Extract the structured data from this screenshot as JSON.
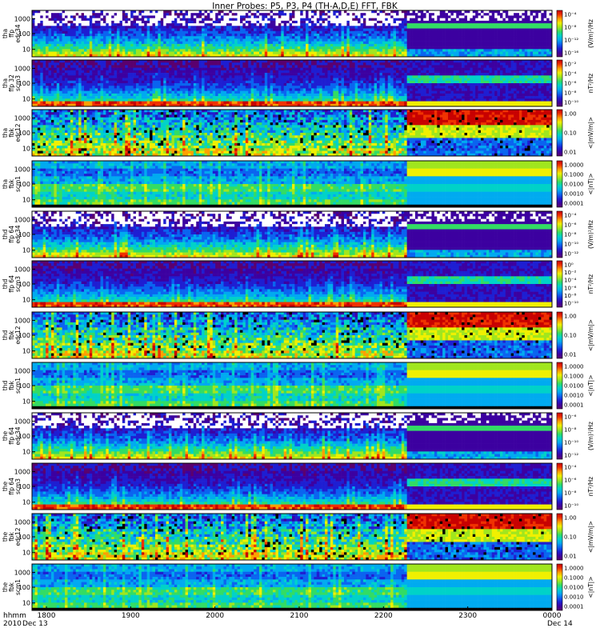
{
  "title": "Inner Probes: P5, P3, P4 (TH-A,D,E) FFT, FBK",
  "time_axis": {
    "row_label_1": "hhmm",
    "row_label_2": "2010",
    "ticks": [
      "1800",
      "1900",
      "2000",
      "2100",
      "2200",
      "2300",
      "0000"
    ],
    "start_date": "Dec 13",
    "end_date": "Dec 14"
  },
  "colors": {
    "colormap": [
      "#5a006e",
      "#3c00a0",
      "#1e1ed2",
      "#0a64f0",
      "#00aaf0",
      "#00d2c8",
      "#32dc64",
      "#a0e61e",
      "#f0f000",
      "#ffa000",
      "#f03200",
      "#c80000"
    ],
    "background": "#ffffff"
  },
  "chart_data": [
    {
      "type": "heatmap",
      "probe": "tha",
      "source": "ffp",
      "channel": "edc34",
      "ylabel": [
        "tha",
        "ffp",
        "edc34"
      ],
      "yticks": [
        "1000",
        "100",
        "10"
      ],
      "colorbar_label": "(V/m)²/Hz",
      "colorbar_ticks": [
        "10⁻⁴",
        "10⁻⁸",
        "10⁻¹²",
        "10⁻¹⁶"
      ]
    },
    {
      "type": "heatmap",
      "probe": "tha",
      "source": "ffp 32",
      "channel": "scm3",
      "ylabel": [
        "tha",
        "ffp 32",
        "scm3"
      ],
      "yticks": [
        "1000",
        "100",
        "10"
      ],
      "colorbar_label": "nT²/Hz",
      "colorbar_ticks": [
        "10⁻²",
        "10⁻⁴",
        "10⁻⁶",
        "10⁻⁸",
        "10⁻¹⁰"
      ]
    },
    {
      "type": "heatmap",
      "probe": "tha",
      "source": "fbk",
      "channel": "edc12",
      "ylabel": [
        "tha",
        "fbk",
        "edc12"
      ],
      "yticks": [
        "1000",
        "100",
        "10"
      ],
      "colorbar_label": "<|mV/m|>",
      "colorbar_ticks": [
        "1.00",
        "0.10",
        "0.01"
      ]
    },
    {
      "type": "heatmap",
      "probe": "tha",
      "source": "fbk",
      "channel": "scm1",
      "ylabel": [
        "tha",
        "fbk",
        "scm1"
      ],
      "yticks": [
        "1000",
        "100",
        "10"
      ],
      "colorbar_label": "<|nT|>",
      "colorbar_ticks": [
        "1.0000",
        "0.1000",
        "0.0100",
        "0.0010",
        "0.0001"
      ]
    },
    {
      "type": "heatmap",
      "probe": "thd",
      "source": "ffp 64",
      "channel": "edc34",
      "ylabel": [
        "thd",
        "ffp 64",
        "edc34"
      ],
      "yticks": [
        "1000",
        "100",
        "10"
      ],
      "colorbar_label": "(V/m)²/Hz",
      "colorbar_ticks": [
        "10⁻⁴",
        "10⁻⁶",
        "10⁻⁸",
        "10⁻¹⁰",
        "10⁻¹²"
      ]
    },
    {
      "type": "heatmap",
      "probe": "thd",
      "source": "ffp 64",
      "channel": "scm3",
      "ylabel": [
        "thd",
        "ffp 64",
        "scm3"
      ],
      "yticks": [
        "1000",
        "100",
        "10"
      ],
      "colorbar_label": "nT²/Hz",
      "colorbar_ticks": [
        "10⁰",
        "10⁻²",
        "10⁻⁴",
        "10⁻⁶",
        "10⁻⁸",
        "10⁻¹⁰"
      ]
    },
    {
      "type": "heatmap",
      "probe": "thd",
      "source": "fbk",
      "channel": "edc12",
      "ylabel": [
        "thd",
        "fbk",
        "edc12"
      ],
      "yticks": [
        "1000",
        "100",
        "10"
      ],
      "colorbar_label": "<|mV/m|>",
      "colorbar_ticks": [
        "1.00",
        "0.10",
        "0.01"
      ]
    },
    {
      "type": "heatmap",
      "probe": "thd",
      "source": "fbk",
      "channel": "scm1",
      "ylabel": [
        "thd",
        "fbk",
        "scm1"
      ],
      "yticks": [
        "1000",
        "100",
        "10"
      ],
      "colorbar_label": "<|nT|>",
      "colorbar_ticks": [
        "1.0000",
        "0.1000",
        "0.0100",
        "0.0010",
        "0.0001"
      ]
    },
    {
      "type": "heatmap",
      "probe": "the",
      "source": "ffp 64",
      "channel": "edc34",
      "ylabel": [
        "the",
        "ffp 64",
        "edc34"
      ],
      "yticks": [
        "1000",
        "100",
        "10"
      ],
      "colorbar_label": "(V/m)²/Hz",
      "colorbar_ticks": [
        "10⁻⁶",
        "10⁻⁸",
        "10⁻¹⁰",
        "10⁻¹²"
      ]
    },
    {
      "type": "heatmap",
      "probe": "the",
      "source": "ffp 64",
      "channel": "scm3",
      "ylabel": [
        "the",
        "ffp 64",
        "scm3"
      ],
      "yticks": [
        "1000",
        "100",
        "10"
      ],
      "colorbar_label": "nT²/Hz",
      "colorbar_ticks": [
        "10⁻⁴",
        "10⁻⁶",
        "10⁻⁸",
        "10⁻¹⁰"
      ]
    },
    {
      "type": "heatmap",
      "probe": "the",
      "source": "fbk",
      "channel": "edc12",
      "ylabel": [
        "the",
        "fbk",
        "edc12"
      ],
      "yticks": [
        "1000",
        "100",
        "10"
      ],
      "colorbar_label": "<|mV/m|>",
      "colorbar_ticks": [
        "1.00",
        "0.10",
        "0.01"
      ]
    },
    {
      "type": "heatmap",
      "probe": "the",
      "source": "fbk",
      "channel": "scm1",
      "ylabel": [
        "the",
        "fbk",
        "scm1"
      ],
      "yticks": [
        "1000",
        "100",
        "10"
      ],
      "colorbar_label": "<|nT|>",
      "colorbar_ticks": [
        "1.0000",
        "0.1000",
        "0.0100",
        "0.0010",
        "0.0001"
      ]
    }
  ]
}
